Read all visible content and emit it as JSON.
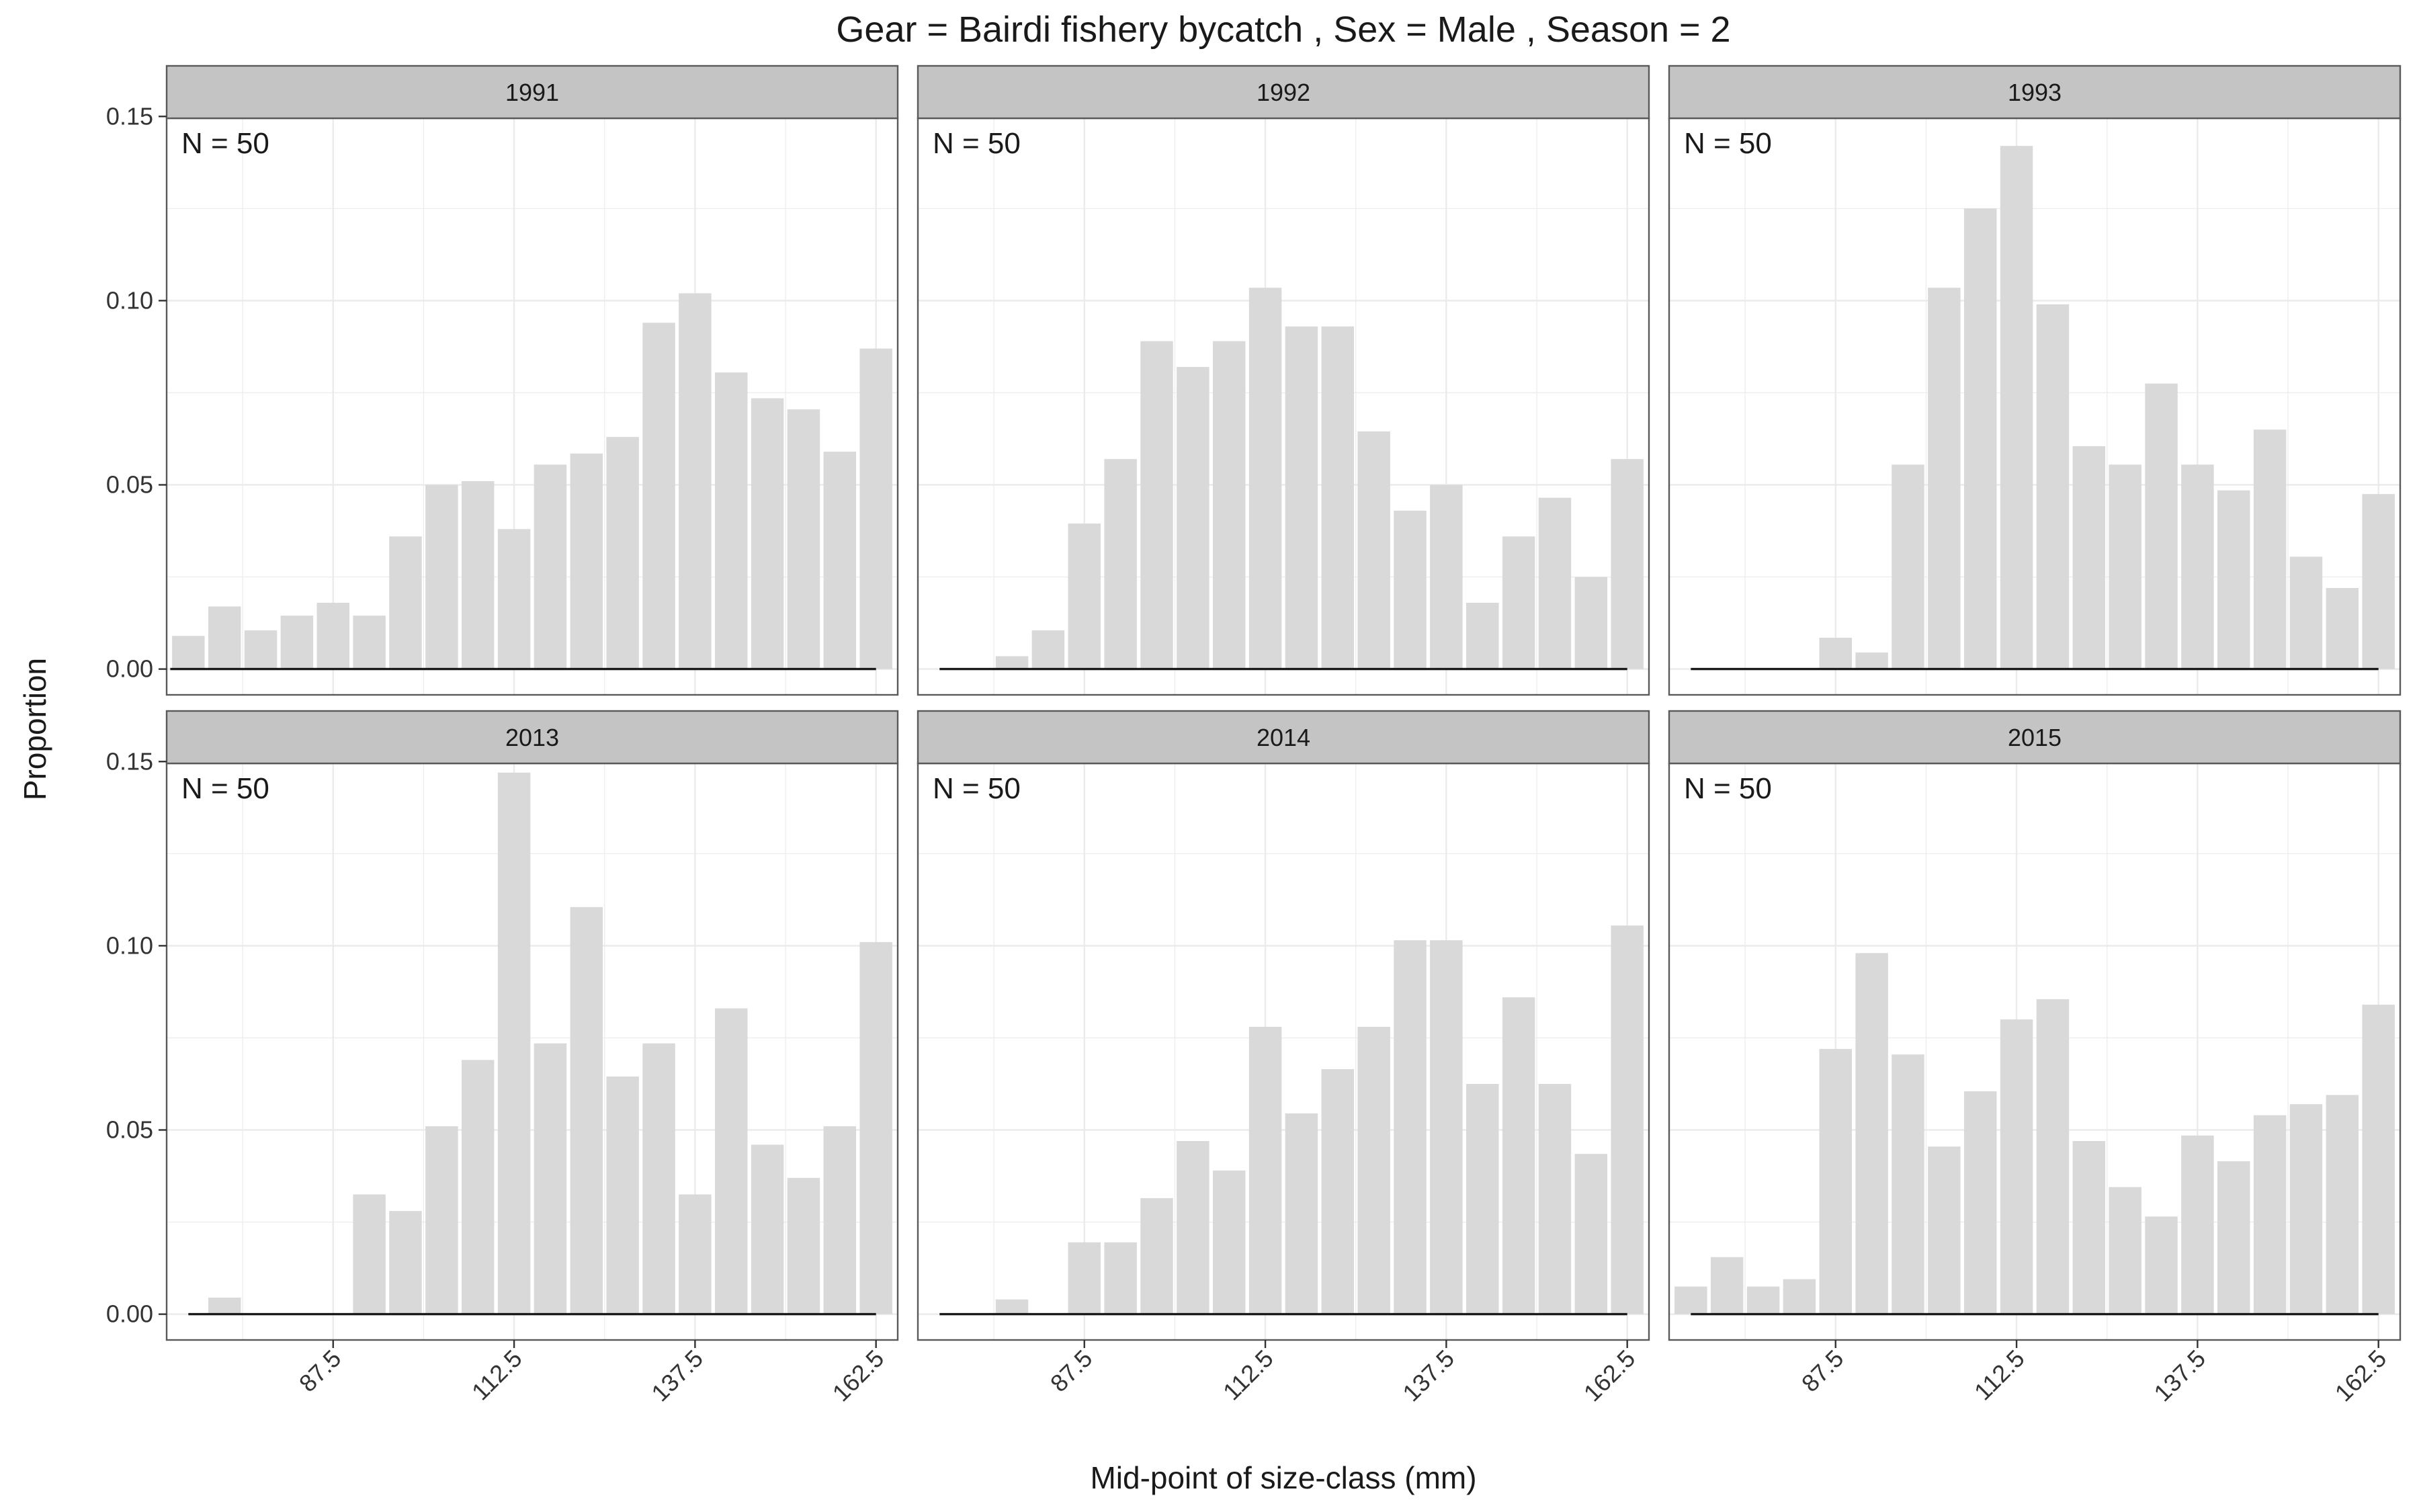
{
  "chart_data": {
    "type": "bar",
    "title": "Gear = Bairdi fishery bycatch , Sex = Male , Season = 2",
    "xlabel": "Mid-point of size-class (mm)",
    "ylabel": "Proportion",
    "x": [
      67.5,
      72.5,
      77.5,
      82.5,
      87.5,
      92.5,
      97.5,
      102.5,
      107.5,
      112.5,
      117.5,
      122.5,
      127.5,
      132.5,
      137.5,
      142.5,
      147.5,
      152.5,
      157.5,
      162.5
    ],
    "xticks": [
      "87.5",
      "112.5",
      "137.5",
      "162.5"
    ],
    "yticks": [
      "0.00",
      "0.05",
      "0.10",
      "0.15"
    ],
    "ylim": [
      -0.007,
      0.1495
    ],
    "xlim": [
      64.5,
      165.5
    ],
    "grid": true,
    "series_types": {
      "observed": "bar",
      "predicted": "line"
    },
    "colors": {
      "bar": "#d9d9d9",
      "line": "#1a1a1a",
      "strip": "#c4c4c4",
      "panel_border": "#5a5a5a",
      "grid": "#ebebeb",
      "text": "#1a1a1a"
    },
    "panels": [
      {
        "strip": "1991",
        "annotation": "N = 50",
        "observed": [
          0.009,
          0.017,
          0.0105,
          0.0145,
          0.018,
          0.0145,
          0.036,
          0.05,
          0.051,
          0.038,
          0.0555,
          0.0585,
          0.063,
          0.094,
          0.102,
          0.0805,
          0.0735,
          0.0705,
          0.059,
          0.087
        ],
        "predicted_x": [
          65.0,
          67.5,
          70.0,
          72.5,
          75.0,
          77.5,
          80.0,
          82.5,
          85.0,
          87.5,
          90.0,
          92.5,
          95.0,
          97.5,
          100.0,
          102.5,
          105.0,
          107.5,
          110.0,
          112.5,
          115.0,
          117.5,
          120.0,
          122.5,
          125.0,
          127.5,
          130.0,
          132.5,
          135.0,
          137.5,
          140.0,
          142.5,
          145.0,
          147.5,
          150.0,
          152.5,
          155.0,
          157.5,
          160.0,
          162.5
        ],
        "predicted": [
          0.0,
          0.0,
          0.0,
          0.0,
          0.0,
          0.0,
          0.0,
          0.0,
          0.0,
          0.0,
          0.0,
          0.0,
          0.0,
          0.0,
          0.0,
          0.0,
          0.0,
          0.0,
          0.0,
          0.0,
          0.0,
          0.0,
          0.0,
          0.0,
          0.0,
          0.0,
          0.0,
          0.0,
          0.0,
          0.0,
          0.0,
          0.0,
          0.0,
          0.0,
          0.0,
          0.0,
          0.0,
          0.0,
          0.0,
          0.0
        ]
      },
      {
        "strip": "1992",
        "annotation": "N = 50",
        "observed": [
          0.0,
          0.0,
          0.0035,
          0.0105,
          0.0395,
          0.057,
          0.089,
          0.082,
          0.089,
          0.1035,
          0.093,
          0.093,
          0.0645,
          0.043,
          0.05,
          0.018,
          0.036,
          0.0465,
          0.025,
          0.057
        ],
        "predicted": [
          0.0,
          0.0,
          0.0,
          0.0,
          0.0,
          0.0,
          0.0,
          0.0,
          0.0,
          0.0,
          0.0,
          0.0,
          0.0,
          0.0,
          0.0,
          0.0,
          0.0,
          0.0,
          0.0,
          0.0
        ]
      },
      {
        "strip": "1993",
        "annotation": "N = 50",
        "observed": [
          0.0,
          0.0,
          0.0,
          0.0,
          0.0085,
          0.0045,
          0.0555,
          0.1035,
          0.125,
          0.142,
          0.099,
          0.0605,
          0.0555,
          0.0775,
          0.0555,
          0.0485,
          0.065,
          0.0305,
          0.022,
          0.0475
        ],
        "predicted": [
          0.0,
          0.0,
          0.0,
          0.0,
          0.0,
          0.0,
          0.0,
          0.0,
          0.0,
          0.0,
          0.0,
          0.0,
          0.0,
          0.0,
          0.0,
          0.0,
          0.0,
          0.0,
          0.0,
          0.0
        ]
      },
      {
        "strip": "2013",
        "annotation": "N = 50",
        "observed": [
          0.0,
          0.0045,
          0.0,
          0.0,
          0.0,
          0.0325,
          0.028,
          0.051,
          0.069,
          0.147,
          0.0735,
          0.1105,
          0.0645,
          0.0735,
          0.0325,
          0.083,
          0.046,
          0.037,
          0.051,
          0.101
        ],
        "predicted": [
          0.0,
          0.0,
          0.0,
          0.0,
          0.0,
          0.0,
          0.0,
          0.0,
          0.0,
          0.0,
          0.0,
          0.0,
          0.0,
          0.0,
          0.0,
          0.0,
          0.0,
          0.0,
          0.0,
          0.0
        ]
      },
      {
        "strip": "2014",
        "annotation": "N = 50",
        "observed": [
          0.0,
          0.0,
          0.004,
          0.0,
          0.0195,
          0.0195,
          0.0315,
          0.047,
          0.039,
          0.078,
          0.0545,
          0.0665,
          0.078,
          0.1015,
          0.1015,
          0.0625,
          0.086,
          0.0625,
          0.0435,
          0.1055
        ],
        "predicted": [
          0.0,
          0.0,
          0.0,
          0.0,
          0.0,
          0.0,
          0.0,
          0.0,
          0.0,
          0.0,
          0.0,
          0.0,
          0.0,
          0.0,
          0.0,
          0.0,
          0.0,
          0.0,
          0.0,
          0.0
        ]
      },
      {
        "strip": "2015",
        "annotation": "N = 50",
        "observed": [
          0.0075,
          0.0155,
          0.0075,
          0.0095,
          0.072,
          0.098,
          0.0705,
          0.0455,
          0.0605,
          0.08,
          0.0855,
          0.047,
          0.0345,
          0.0265,
          0.0485,
          0.0415,
          0.054,
          0.057,
          0.0595,
          0.084
        ],
        "predicted": [
          0.0,
          0.0,
          0.0,
          0.0,
          0.0,
          0.0,
          0.0,
          0.0,
          0.0,
          0.0,
          0.0,
          0.0,
          0.0,
          0.0,
          0.0,
          0.0,
          0.0,
          0.0,
          0.0,
          0.0
        ]
      }
    ]
  }
}
